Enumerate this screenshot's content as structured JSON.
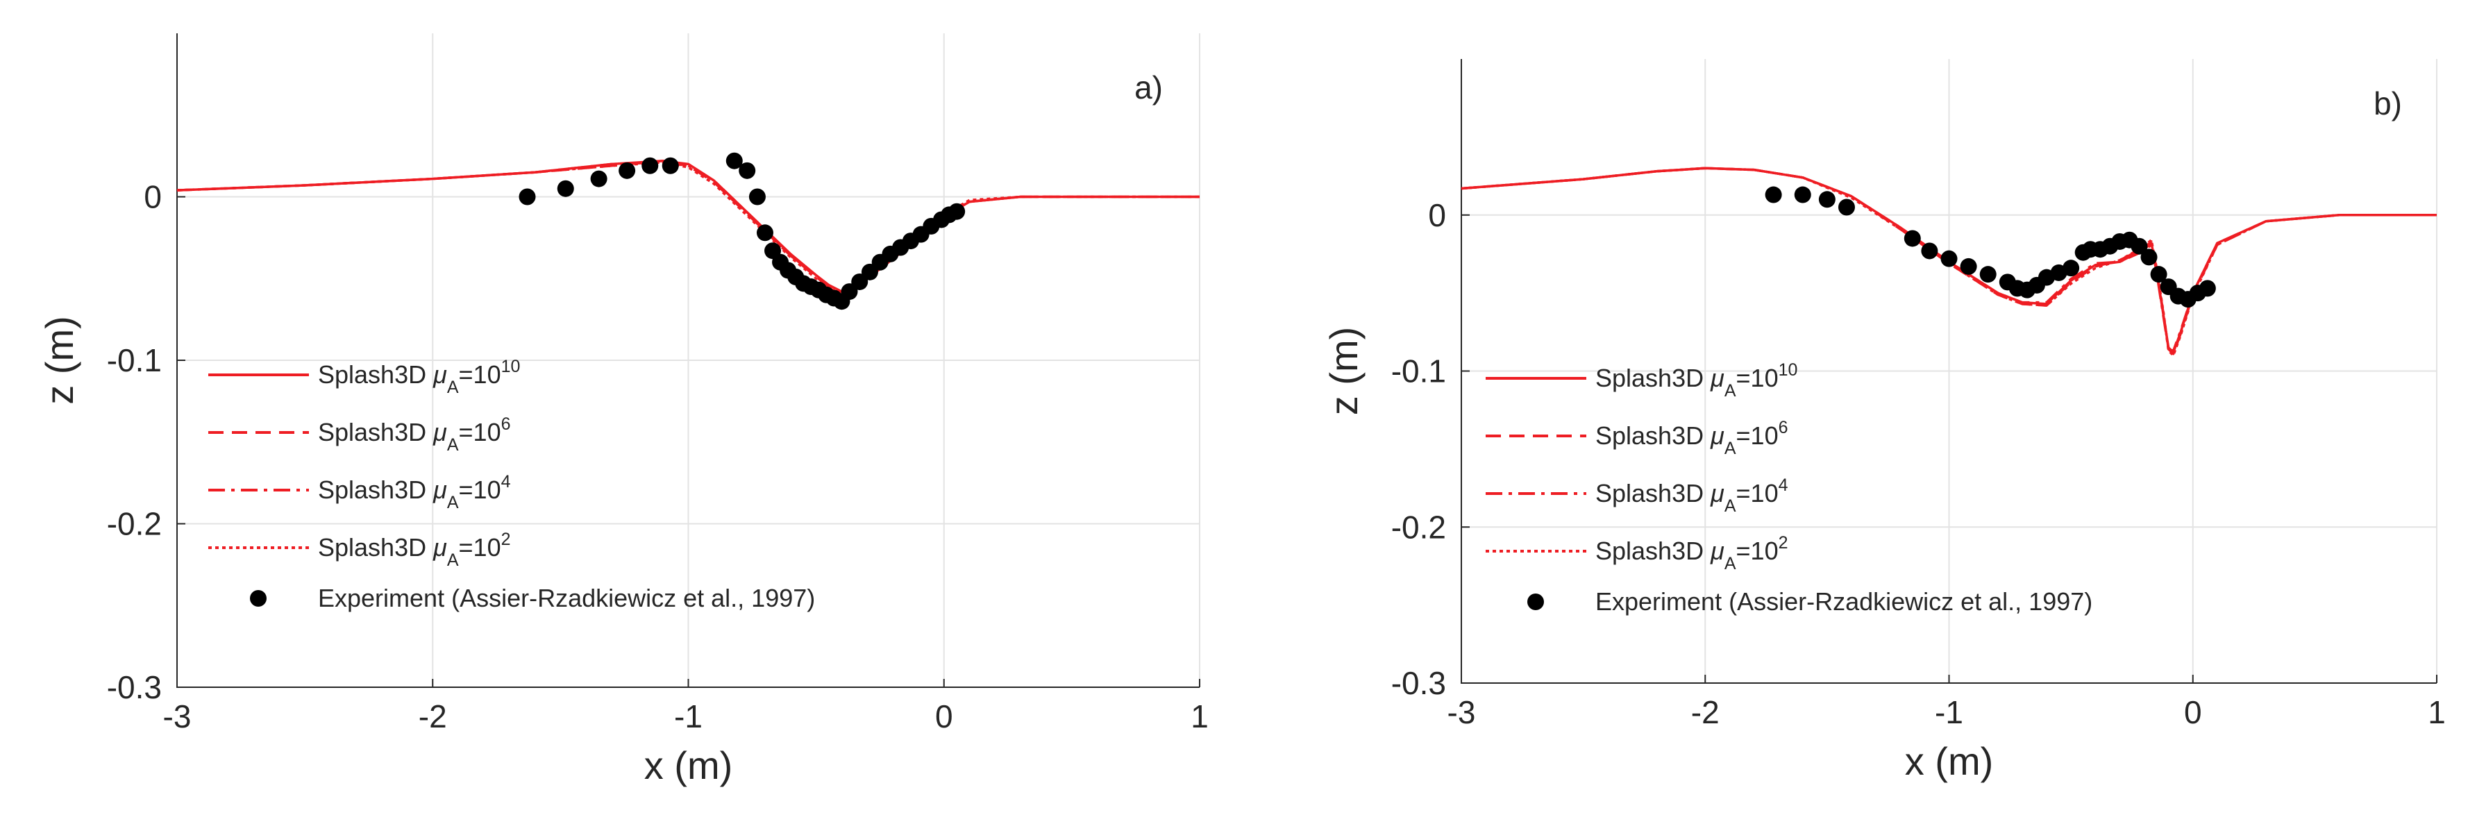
{
  "chart_data": [
    {
      "type": "line",
      "panel_label": "a)",
      "xlabel": "x (m)",
      "ylabel": "z (m)",
      "xlim": [
        -3,
        1
      ],
      "ylim": [
        -0.3,
        0.1
      ],
      "xticks": [
        -3,
        -2,
        -1,
        0,
        1
      ],
      "xtick_labels": [
        "-3",
        "-2",
        "-1",
        "0",
        "1"
      ],
      "yticks": [
        -0.3,
        -0.2,
        -0.1,
        0
      ],
      "ytick_labels": [
        "-0.3",
        "-0.2",
        "-0.1",
        "0"
      ],
      "grid": true,
      "legend_position": "bottom-left",
      "colors": {
        "simulation": "#ee1d23",
        "experiment": "#000000"
      },
      "series": [
        {
          "name": "Splash3D μA=10^10",
          "label_base": "Splash3D ",
          "mu": "μ",
          "sub": "A",
          "eq": "=10",
          "exp": "10",
          "style": "solid",
          "x": [
            -3,
            -2.5,
            -2.0,
            -1.6,
            -1.3,
            -1.1,
            -1.0,
            -0.9,
            -0.8,
            -0.7,
            -0.6,
            -0.5,
            -0.45,
            -0.4,
            -0.35,
            -0.3,
            -0.2,
            -0.1,
            0.0,
            0.1,
            0.3,
            0.6,
            1.0
          ],
          "values": [
            0.004,
            0.007,
            0.011,
            0.015,
            0.02,
            0.022,
            0.02,
            0.01,
            -0.005,
            -0.02,
            -0.035,
            -0.048,
            -0.054,
            -0.058,
            -0.057,
            -0.05,
            -0.038,
            -0.026,
            -0.012,
            -0.003,
            0.0,
            0.0,
            0.0
          ]
        },
        {
          "name": "Splash3D μA=10^6",
          "label_base": "Splash3D ",
          "mu": "μ",
          "sub": "A",
          "eq": "=10",
          "exp": "6",
          "style": "dashed",
          "x": [
            -3,
            -2.5,
            -2.0,
            -1.6,
            -1.3,
            -1.1,
            -1.0,
            -0.9,
            -0.8,
            -0.7,
            -0.6,
            -0.5,
            -0.45,
            -0.4,
            -0.35,
            -0.3,
            -0.2,
            -0.1,
            0.0,
            0.1,
            0.3,
            0.6,
            1.0
          ],
          "values": [
            0.004,
            0.007,
            0.011,
            0.015,
            0.019,
            0.022,
            0.019,
            0.009,
            -0.006,
            -0.021,
            -0.036,
            -0.049,
            -0.055,
            -0.058,
            -0.056,
            -0.049,
            -0.037,
            -0.025,
            -0.011,
            -0.003,
            0.0,
            0.0,
            0.0
          ]
        },
        {
          "name": "Splash3D μA=10^4",
          "label_base": "Splash3D ",
          "mu": "μ",
          "sub": "A",
          "eq": "=10",
          "exp": "4",
          "style": "dashdot",
          "x": [
            -3,
            -2.5,
            -2.0,
            -1.6,
            -1.3,
            -1.1,
            -1.0,
            -0.9,
            -0.8,
            -0.7,
            -0.6,
            -0.5,
            -0.45,
            -0.4,
            -0.35,
            -0.3,
            -0.2,
            -0.1,
            0.0,
            0.1,
            0.3,
            0.6,
            1.0
          ],
          "values": [
            0.004,
            0.007,
            0.011,
            0.015,
            0.02,
            0.021,
            0.019,
            0.01,
            -0.005,
            -0.02,
            -0.036,
            -0.048,
            -0.055,
            -0.059,
            -0.057,
            -0.05,
            -0.038,
            -0.025,
            -0.012,
            -0.003,
            0.0,
            0.0,
            0.0
          ]
        },
        {
          "name": "Splash3D μA=10^2",
          "label_base": "Splash3D ",
          "mu": "μ",
          "sub": "A",
          "eq": "=10",
          "exp": "2",
          "style": "dotted",
          "x": [
            -3,
            -2.5,
            -2.0,
            -1.6,
            -1.3,
            -1.1,
            -1.0,
            -0.9,
            -0.8,
            -0.7,
            -0.6,
            -0.5,
            -0.45,
            -0.4,
            -0.35,
            -0.3,
            -0.2,
            -0.1,
            0.0,
            0.1,
            0.3,
            0.6,
            1.0
          ],
          "values": [
            0.004,
            0.007,
            0.011,
            0.015,
            0.019,
            0.021,
            0.018,
            0.008,
            -0.007,
            -0.022,
            -0.037,
            -0.05,
            -0.056,
            -0.059,
            -0.056,
            -0.049,
            -0.036,
            -0.024,
            -0.011,
            -0.002,
            0.0,
            0.0,
            0.0
          ]
        }
      ],
      "experiment": {
        "name": "Experiment (Assier-Rzadkiewicz et al., 1997)",
        "x": [
          -1.63,
          -1.48,
          -1.35,
          -1.24,
          -1.15,
          -1.07,
          -0.82,
          -0.77,
          -0.73,
          -0.7,
          -0.67,
          -0.64,
          -0.61,
          -0.58,
          -0.55,
          -0.52,
          -0.49,
          -0.46,
          -0.43,
          -0.4,
          -0.37,
          -0.33,
          -0.29,
          -0.25,
          -0.21,
          -0.17,
          -0.13,
          -0.09,
          -0.05,
          -0.01,
          0.02,
          0.05
        ],
        "values": [
          0.0,
          0.005,
          0.011,
          0.016,
          0.019,
          0.019,
          0.022,
          0.016,
          0.0,
          -0.022,
          -0.033,
          -0.04,
          -0.045,
          -0.049,
          -0.053,
          -0.055,
          -0.057,
          -0.06,
          -0.062,
          -0.064,
          -0.058,
          -0.052,
          -0.046,
          -0.04,
          -0.035,
          -0.031,
          -0.027,
          -0.023,
          -0.018,
          -0.014,
          -0.011,
          -0.009
        ]
      }
    },
    {
      "type": "line",
      "panel_label": "b)",
      "xlabel": "x (m)",
      "ylabel": "z (m)",
      "xlim": [
        -3,
        1
      ],
      "ylim": [
        -0.3,
        0.1
      ],
      "xticks": [
        -3,
        -2,
        -1,
        0,
        1
      ],
      "xtick_labels": [
        "-3",
        "-2",
        "-1",
        "0",
        "1"
      ],
      "yticks": [
        -0.3,
        -0.2,
        -0.1,
        0
      ],
      "ytick_labels": [
        "-0.3",
        "-0.2",
        "-0.1",
        "0"
      ],
      "grid": true,
      "legend_position": "bottom-left",
      "colors": {
        "simulation": "#ee1d23",
        "experiment": "#000000"
      },
      "series": [
        {
          "name": "Splash3D μA=10^10",
          "label_base": "Splash3D ",
          "mu": "μ",
          "sub": "A",
          "eq": "=10",
          "exp": "10",
          "style": "solid",
          "x": [
            -3,
            -2.5,
            -2.2,
            -2.0,
            -1.8,
            -1.6,
            -1.4,
            -1.2,
            -1.0,
            -0.8,
            -0.7,
            -0.6,
            -0.5,
            -0.4,
            -0.3,
            -0.2,
            -0.17,
            -0.15,
            -0.12,
            -0.1,
            -0.08,
            -0.05,
            0.0,
            0.1,
            0.3,
            0.6,
            1.0
          ],
          "values": [
            0.017,
            0.023,
            0.028,
            0.03,
            0.029,
            0.024,
            0.012,
            -0.008,
            -0.03,
            -0.05,
            -0.056,
            -0.057,
            -0.042,
            -0.032,
            -0.03,
            -0.022,
            -0.018,
            -0.035,
            -0.065,
            -0.085,
            -0.088,
            -0.075,
            -0.05,
            -0.018,
            -0.004,
            0.0,
            0.0
          ]
        },
        {
          "name": "Splash3D μA=10^6",
          "label_base": "Splash3D ",
          "mu": "μ",
          "sub": "A",
          "eq": "=10",
          "exp": "6",
          "style": "dashed",
          "x": [
            -3,
            -2.5,
            -2.2,
            -2.0,
            -1.8,
            -1.6,
            -1.4,
            -1.2,
            -1.0,
            -0.8,
            -0.7,
            -0.6,
            -0.5,
            -0.4,
            -0.3,
            -0.2,
            -0.17,
            -0.15,
            -0.12,
            -0.1,
            -0.08,
            -0.05,
            0.0,
            0.1,
            0.3,
            0.6,
            1.0
          ],
          "values": [
            0.017,
            0.023,
            0.028,
            0.03,
            0.029,
            0.024,
            0.012,
            -0.009,
            -0.031,
            -0.051,
            -0.057,
            -0.058,
            -0.043,
            -0.033,
            -0.029,
            -0.021,
            -0.017,
            -0.034,
            -0.064,
            -0.086,
            -0.089,
            -0.076,
            -0.051,
            -0.019,
            -0.004,
            0.0,
            0.0
          ]
        },
        {
          "name": "Splash3D μA=10^4",
          "label_base": "Splash3D ",
          "mu": "μ",
          "sub": "A",
          "eq": "=10",
          "exp": "4",
          "style": "dashdot",
          "x": [
            -3,
            -2.5,
            -2.2,
            -2.0,
            -1.8,
            -1.6,
            -1.4,
            -1.2,
            -1.0,
            -0.8,
            -0.7,
            -0.6,
            -0.5,
            -0.4,
            -0.3,
            -0.2,
            -0.17,
            -0.15,
            -0.12,
            -0.1,
            -0.08,
            -0.05,
            0.0,
            0.1,
            0.3,
            0.6,
            1.0
          ],
          "values": [
            0.017,
            0.023,
            0.028,
            0.03,
            0.029,
            0.024,
            0.012,
            -0.008,
            -0.03,
            -0.05,
            -0.056,
            -0.056,
            -0.041,
            -0.031,
            -0.03,
            -0.023,
            -0.019,
            -0.036,
            -0.066,
            -0.086,
            -0.087,
            -0.074,
            -0.05,
            -0.018,
            -0.004,
            0.0,
            0.0
          ]
        },
        {
          "name": "Splash3D μA=10^2",
          "label_base": "Splash3D ",
          "mu": "μ",
          "sub": "A",
          "eq": "=10",
          "exp": "2",
          "style": "dotted",
          "x": [
            -3,
            -2.5,
            -2.2,
            -2.0,
            -1.8,
            -1.6,
            -1.4,
            -1.2,
            -1.0,
            -0.8,
            -0.7,
            -0.6,
            -0.5,
            -0.4,
            -0.3,
            -0.2,
            -0.17,
            -0.15,
            -0.12,
            -0.1,
            -0.08,
            -0.05,
            0.0,
            0.1,
            0.3,
            0.6,
            1.0
          ],
          "values": [
            0.017,
            0.023,
            0.028,
            0.03,
            0.029,
            0.024,
            0.011,
            -0.009,
            -0.031,
            -0.051,
            -0.057,
            -0.058,
            -0.044,
            -0.034,
            -0.029,
            -0.02,
            -0.016,
            -0.033,
            -0.063,
            -0.087,
            -0.09,
            -0.077,
            -0.052,
            -0.019,
            -0.004,
            0.0,
            0.0
          ]
        }
      ],
      "experiment": {
        "name": "Experiment (Assier-Rzadkiewicz et al., 1997)",
        "x": [
          -1.72,
          -1.6,
          -1.5,
          -1.42,
          -1.15,
          -1.08,
          -1.0,
          -0.92,
          -0.84,
          -0.76,
          -0.72,
          -0.68,
          -0.64,
          -0.6,
          -0.55,
          -0.5,
          -0.45,
          -0.42,
          -0.38,
          -0.34,
          -0.3,
          -0.26,
          -0.22,
          -0.18,
          -0.14,
          -0.1,
          -0.06,
          -0.02,
          0.02,
          0.06
        ],
        "values": [
          0.013,
          0.013,
          0.01,
          0.005,
          -0.015,
          -0.023,
          -0.028,
          -0.033,
          -0.038,
          -0.043,
          -0.047,
          -0.048,
          -0.045,
          -0.04,
          -0.037,
          -0.034,
          -0.024,
          -0.022,
          -0.022,
          -0.02,
          -0.017,
          -0.016,
          -0.02,
          -0.027,
          -0.038,
          -0.046,
          -0.052,
          -0.054,
          -0.05,
          -0.047
        ]
      }
    }
  ]
}
